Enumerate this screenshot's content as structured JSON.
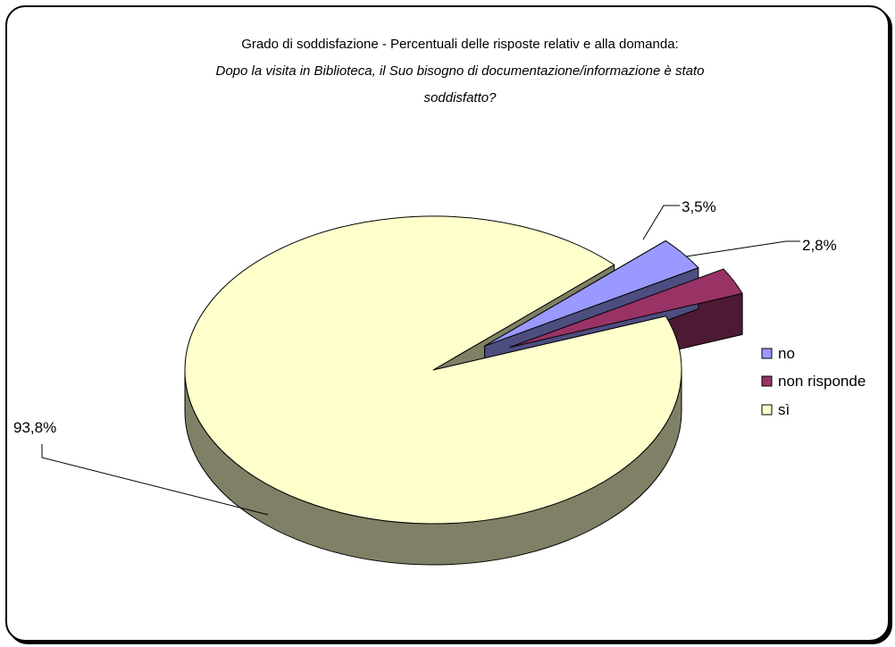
{
  "chart_data": {
    "type": "pie",
    "title_lines": [
      "Grado di soddisfazione - Percentuali delle risposte relativ e alla domanda:",
      "Dopo la visita in Biblioteca, il Suo bisogno di documentazione/informazione è stato",
      "soddisfatto?"
    ],
    "categories": [
      "no",
      "non risponde",
      "sì"
    ],
    "values": [
      3.5,
      2.8,
      93.8
    ],
    "labels": [
      "3,5%",
      "2,8%",
      "93,8%"
    ],
    "colors": {
      "no": "#9999ff",
      "non_risponde": "#993366",
      "si": "#ffffcc"
    },
    "side_colors": {
      "no": "#4d4d80",
      "non_risponde": "#4d1a33",
      "si": "#808066"
    },
    "three_d": true,
    "exploded": [
      "no",
      "non risponde"
    ],
    "legend_position": "right"
  }
}
